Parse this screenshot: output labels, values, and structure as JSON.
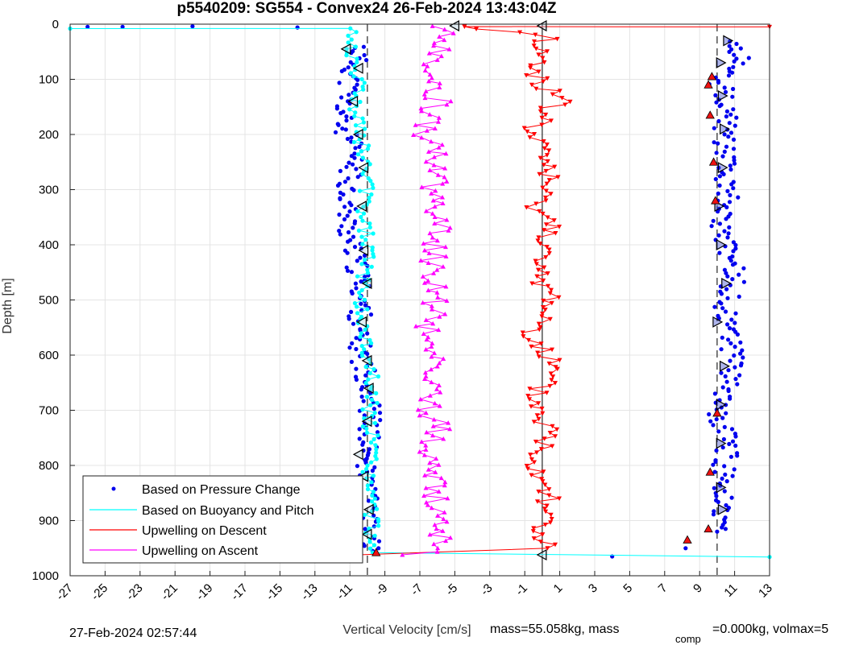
{
  "chart_data": {
    "type": "scatter",
    "title": "p5540209: SG554 - Convex24 26-Feb-2024 13:43:04Z",
    "xlabel": "Vertical Velocity [cm/s]",
    "ylabel": "Depth [m]",
    "xlim": [
      -27,
      13
    ],
    "ylim": [
      1000,
      0
    ],
    "y_reversed": true,
    "xticks": [
      "-27",
      "-25",
      "-23",
      "-21",
      "-19",
      "-17",
      "-15",
      "-13",
      "-11",
      "-9",
      "-7",
      "-5",
      "-3",
      "-1",
      "1",
      "3",
      "5",
      "7",
      "9",
      "11",
      "13"
    ],
    "yticks": [
      "0",
      "100",
      "200",
      "300",
      "400",
      "500",
      "600",
      "700",
      "800",
      "900",
      "1000"
    ],
    "grid": true,
    "legend_placement": "bottom-left",
    "reference_lines": [
      {
        "style": "dashed",
        "x": -10
      },
      {
        "style": "dashed",
        "x": 10
      },
      {
        "style": "solid",
        "x": 0
      }
    ],
    "series": [
      {
        "name": "Based on Pressure Change",
        "color": "#0000ee",
        "marker": "dot",
        "points": [
          {
            "x": -10.4,
            "y": 40
          },
          {
            "x": -10.9,
            "y": 90
          },
          {
            "x": -11.3,
            "y": 140
          },
          {
            "x": -11.5,
            "y": 180
          },
          {
            "x": -10.8,
            "y": 230
          },
          {
            "x": -11.0,
            "y": 280
          },
          {
            "x": -11.2,
            "y": 340
          },
          {
            "x": -11.0,
            "y": 395
          },
          {
            "x": -10.5,
            "y": 450
          },
          {
            "x": -10.3,
            "y": 510
          },
          {
            "x": -10.6,
            "y": 560
          },
          {
            "x": -10.2,
            "y": 620
          },
          {
            "x": -9.8,
            "y": 670
          },
          {
            "x": -9.9,
            "y": 740
          },
          {
            "x": -10.2,
            "y": 800
          },
          {
            "x": -10.0,
            "y": 860
          },
          {
            "x": -10.1,
            "y": 920
          },
          {
            "x": -9.7,
            "y": 955
          },
          {
            "x": 10.9,
            "y": 30
          },
          {
            "x": 11.3,
            "y": 60
          },
          {
            "x": 10.2,
            "y": 110
          },
          {
            "x": 10.7,
            "y": 150
          },
          {
            "x": 10.3,
            "y": 200
          },
          {
            "x": 10.4,
            "y": 260
          },
          {
            "x": 10.6,
            "y": 310
          },
          {
            "x": 10.3,
            "y": 370
          },
          {
            "x": 10.5,
            "y": 420
          },
          {
            "x": 11.1,
            "y": 450
          },
          {
            "x": 10.4,
            "y": 520
          },
          {
            "x": 10.9,
            "y": 580
          },
          {
            "x": 10.8,
            "y": 640
          },
          {
            "x": 10.0,
            "y": 700
          },
          {
            "x": 10.6,
            "y": 760
          },
          {
            "x": 10.3,
            "y": 820
          },
          {
            "x": 10.5,
            "y": 880
          },
          {
            "x": 10.0,
            "y": 920
          },
          {
            "x": 8.2,
            "y": 950
          },
          {
            "x": 4.0,
            "y": 965
          },
          {
            "x": -26.0,
            "y": 5
          },
          {
            "x": -24.0,
            "y": 5
          },
          {
            "x": -20.0,
            "y": 4
          },
          {
            "x": -14.0,
            "y": 6
          }
        ]
      },
      {
        "name": "Based on Buoyancy and Pitch",
        "color": "#00ffff",
        "marker": "circle-line",
        "points": [
          {
            "x": -27,
            "y": 8
          },
          {
            "x": -11.0,
            "y": 8
          },
          {
            "x": -11.0,
            "y": 40
          },
          {
            "x": -10.5,
            "y": 100
          },
          {
            "x": -10.7,
            "y": 160
          },
          {
            "x": -10.3,
            "y": 220
          },
          {
            "x": -10.1,
            "y": 290
          },
          {
            "x": -10.3,
            "y": 350
          },
          {
            "x": -9.9,
            "y": 410
          },
          {
            "x": -10.2,
            "y": 470
          },
          {
            "x": -10.4,
            "y": 530
          },
          {
            "x": -10.1,
            "y": 590
          },
          {
            "x": -9.7,
            "y": 650
          },
          {
            "x": -9.9,
            "y": 710
          },
          {
            "x": -9.8,
            "y": 770
          },
          {
            "x": -10.0,
            "y": 830
          },
          {
            "x": -9.8,
            "y": 890
          },
          {
            "x": -9.7,
            "y": 940
          },
          {
            "x": -9.7,
            "y": 958
          },
          {
            "x": 13,
            "y": 966
          }
        ]
      },
      {
        "name": "Upwelling on Descent",
        "color": "#ff0000",
        "marker": "triangle-down-line",
        "points": [
          {
            "x": 13,
            "y": 5
          },
          {
            "x": -5.0,
            "y": 3
          },
          {
            "x": 0.3,
            "y": 20
          },
          {
            "x": -0.5,
            "y": 80
          },
          {
            "x": 0.8,
            "y": 140
          },
          {
            "x": -0.7,
            "y": 200
          },
          {
            "x": 0.5,
            "y": 260
          },
          {
            "x": -0.3,
            "y": 320
          },
          {
            "x": 0.7,
            "y": 380
          },
          {
            "x": -0.6,
            "y": 440
          },
          {
            "x": 0.6,
            "y": 500
          },
          {
            "x": -0.4,
            "y": 560
          },
          {
            "x": 0.5,
            "y": 620
          },
          {
            "x": -0.5,
            "y": 680
          },
          {
            "x": 0.4,
            "y": 740
          },
          {
            "x": -0.3,
            "y": 800
          },
          {
            "x": 0.6,
            "y": 860
          },
          {
            "x": -0.2,
            "y": 920
          },
          {
            "x": 0.3,
            "y": 950
          },
          {
            "x": -10.5,
            "y": 962
          }
        ]
      },
      {
        "name": "Upwelling on Ascent",
        "color": "#ff00ff",
        "marker": "triangle-up-line",
        "points": [
          {
            "x": -6.0,
            "y": 5
          },
          {
            "x": -5.5,
            "y": 40
          },
          {
            "x": -6.5,
            "y": 90
          },
          {
            "x": -6.0,
            "y": 140
          },
          {
            "x": -6.8,
            "y": 200
          },
          {
            "x": -5.8,
            "y": 260
          },
          {
            "x": -6.3,
            "y": 320
          },
          {
            "x": -5.9,
            "y": 380
          },
          {
            "x": -6.4,
            "y": 440
          },
          {
            "x": -6.0,
            "y": 500
          },
          {
            "x": -6.6,
            "y": 560
          },
          {
            "x": -6.1,
            "y": 620
          },
          {
            "x": -6.5,
            "y": 680
          },
          {
            "x": -6.0,
            "y": 740
          },
          {
            "x": -6.4,
            "y": 800
          },
          {
            "x": -6.2,
            "y": 860
          },
          {
            "x": -6.0,
            "y": 920
          },
          {
            "x": -5.5,
            "y": 950
          },
          {
            "x": -8.0,
            "y": 962
          }
        ]
      }
    ],
    "marker_annotations": {
      "black_triangles_left": [
        {
          "x": -11.2,
          "y": 45
        },
        {
          "x": -10.5,
          "y": 80
        },
        {
          "x": -10.8,
          "y": 140
        },
        {
          "x": -10.5,
          "y": 200
        },
        {
          "x": -10.2,
          "y": 260
        },
        {
          "x": -10.3,
          "y": 330
        },
        {
          "x": -10.2,
          "y": 410
        },
        {
          "x": -10.0,
          "y": 470
        },
        {
          "x": -10.3,
          "y": 540
        },
        {
          "x": -10.0,
          "y": 610
        },
        {
          "x": -9.9,
          "y": 660
        },
        {
          "x": -10.0,
          "y": 720
        },
        {
          "x": -10.5,
          "y": 780
        },
        {
          "x": -10.2,
          "y": 820
        },
        {
          "x": -9.9,
          "y": 880
        },
        {
          "x": -10.0,
          "y": 925
        },
        {
          "x": -5.0,
          "y": 3
        },
        {
          "x": 0.0,
          "y": 3
        },
        {
          "x": 0.0,
          "y": 962
        }
      ],
      "black_triangles_right": [
        {
          "x": 10.6,
          "y": 30
        },
        {
          "x": 10.2,
          "y": 70
        },
        {
          "x": 10.3,
          "y": 130
        },
        {
          "x": 10.4,
          "y": 190
        },
        {
          "x": 10.3,
          "y": 260
        },
        {
          "x": 10.1,
          "y": 330
        },
        {
          "x": 10.2,
          "y": 400
        },
        {
          "x": 10.5,
          "y": 470
        },
        {
          "x": 10.0,
          "y": 540
        },
        {
          "x": 10.4,
          "y": 620
        },
        {
          "x": 10.2,
          "y": 690
        },
        {
          "x": 10.2,
          "y": 760
        },
        {
          "x": 10.2,
          "y": 840
        },
        {
          "x": 10.3,
          "y": 880
        }
      ],
      "red_markers": [
        {
          "x": 9.7,
          "y": 95
        },
        {
          "x": 9.5,
          "y": 110
        },
        {
          "x": 9.6,
          "y": 165
        },
        {
          "x": 9.8,
          "y": 250
        },
        {
          "x": 9.9,
          "y": 320
        },
        {
          "x": 10.0,
          "y": 705
        },
        {
          "x": 9.6,
          "y": 812
        },
        {
          "x": 9.5,
          "y": 915
        },
        {
          "x": 8.3,
          "y": 935
        },
        {
          "x": -9.5,
          "y": 958
        }
      ]
    },
    "footer_left": "27-Feb-2024 02:57:44",
    "footer_info_a": "mass=55.058kg, mass",
    "footer_info_sub": "comp",
    "footer_info_b": "=0.000kg, volmax=5"
  }
}
